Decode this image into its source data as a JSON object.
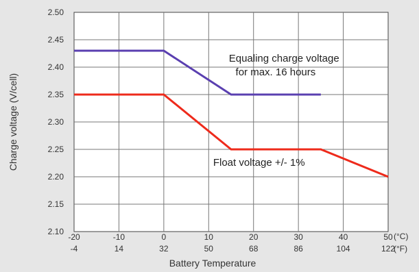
{
  "chart_data": {
    "type": "line",
    "xlabel": "Battery Temperature",
    "ylabel": "Charge voltage (V/cell)",
    "x_unit_primary": "(°C)",
    "x_unit_secondary": "(°F)",
    "xlim": [
      -20,
      50
    ],
    "ylim": [
      2.1,
      2.5
    ],
    "grid": true,
    "legend": "none",
    "x_ticks": [
      -20,
      -10,
      0,
      10,
      20,
      30,
      40,
      50
    ],
    "x_tick_labels": [
      "-20",
      "-10",
      "0",
      "10",
      "20",
      "30",
      "40",
      "50"
    ],
    "x_tick_labels_secondary": [
      "-4",
      "14",
      "32",
      "50",
      "68",
      "86",
      "104",
      "122"
    ],
    "y_ticks": [
      2.1,
      2.15,
      2.2,
      2.25,
      2.3,
      2.35,
      2.4,
      2.45,
      2.5
    ],
    "y_tick_labels": [
      "2.10",
      "2.15",
      "2.20",
      "2.25",
      "2.30",
      "2.35",
      "2.40",
      "2.45",
      "2.50"
    ],
    "series": [
      {
        "color": "#5a3fb0",
        "x": [
          -20,
          0,
          15,
          35
        ],
        "y": [
          2.43,
          2.43,
          2.35,
          2.35
        ]
      },
      {
        "color": "#ee2a1b",
        "x": [
          -20,
          0,
          15,
          35,
          50
        ],
        "y": [
          2.35,
          2.35,
          2.25,
          2.25,
          2.2
        ]
      }
    ],
    "annotations": [
      {
        "text": "Equaling charge voltage",
        "x": 14.5,
        "y": 2.41
      },
      {
        "text": "for max. 16 hours",
        "x": 16,
        "y": 2.385
      },
      {
        "text": "Float voltage +/- 1%",
        "x": 11,
        "y": 2.22
      }
    ]
  }
}
